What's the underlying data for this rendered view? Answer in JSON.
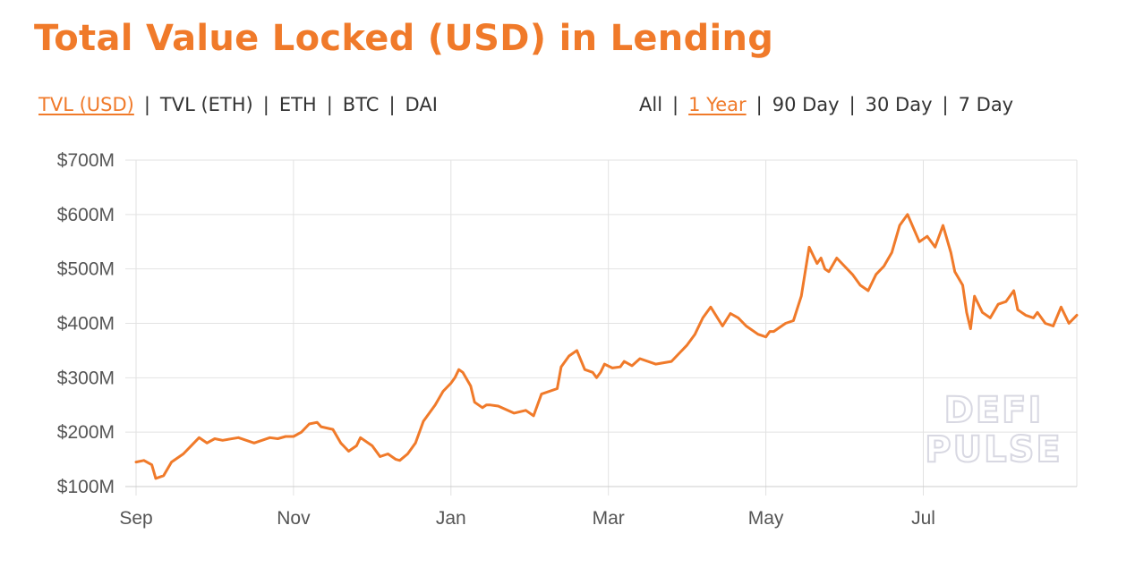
{
  "title": "Total Value Locked (USD) in Lending",
  "metric_tabs": [
    {
      "label": "TVL (USD)",
      "active": true
    },
    {
      "label": "TVL (ETH)",
      "active": false
    },
    {
      "label": "ETH",
      "active": false
    },
    {
      "label": "BTC",
      "active": false
    },
    {
      "label": "DAI",
      "active": false
    }
  ],
  "range_tabs": [
    {
      "label": "All",
      "active": false
    },
    {
      "label": "1 Year",
      "active": true
    },
    {
      "label": "90 Day",
      "active": false
    },
    {
      "label": "30 Day",
      "active": false
    },
    {
      "label": "7 Day",
      "active": false
    }
  ],
  "separator": "|",
  "watermark": [
    "DEFI",
    "PULSE"
  ],
  "colors": {
    "accent": "#f07a2a",
    "line": "#f07a2a",
    "grid": "#e2e2e2",
    "text": "#333333"
  },
  "chart_data": {
    "type": "line",
    "title": "Total Value Locked (USD) in Lending",
    "xlabel": "",
    "ylabel": "",
    "x_ticks": [
      "Sep",
      "Nov",
      "Jan",
      "Mar",
      "May",
      "Jul"
    ],
    "x_tick_positions": [
      0,
      2,
      4,
      6,
      8,
      10
    ],
    "xlim": [
      0,
      11.95
    ],
    "y_ticks": [
      "$100M",
      "$200M",
      "$300M",
      "$400M",
      "$500M",
      "$600M",
      "$700M"
    ],
    "y_tick_values": [
      100,
      200,
      300,
      400,
      500,
      600,
      700
    ],
    "ylim": [
      100,
      700
    ],
    "units": "USD millions",
    "grid": true,
    "legend": "none",
    "series": [
      {
        "x": [
          0,
          0.1,
          0.2,
          0.25,
          0.35,
          0.45,
          0.6,
          0.7,
          0.8,
          0.9,
          1.0,
          1.1,
          1.3,
          1.5,
          1.7,
          1.8,
          1.9,
          2.0,
          2.1,
          2.2,
          2.3,
          2.35,
          2.5,
          2.6,
          2.7,
          2.8,
          2.85,
          3.0,
          3.1,
          3.2,
          3.3,
          3.35,
          3.45,
          3.55,
          3.65,
          3.8,
          3.9,
          4.0,
          4.05,
          4.1,
          4.15,
          4.25,
          4.3,
          4.4,
          4.45,
          4.5,
          4.6,
          4.8,
          4.95,
          5.05,
          5.15,
          5.35,
          5.4,
          5.5,
          5.6,
          5.7,
          5.8,
          5.85,
          5.9,
          5.95,
          6.05,
          6.15,
          6.2,
          6.3,
          6.4,
          6.6,
          6.8,
          7.0,
          7.1,
          7.2,
          7.3,
          7.45,
          7.55,
          7.65,
          7.75,
          7.9,
          8.0,
          8.05,
          8.1,
          8.25,
          8.35,
          8.45,
          8.55,
          8.65,
          8.7,
          8.75,
          8.8,
          8.9,
          9.0,
          9.1,
          9.2,
          9.3,
          9.4,
          9.5,
          9.6,
          9.7,
          9.8,
          9.95,
          10.05,
          10.15,
          10.25,
          10.35,
          10.4,
          10.5,
          10.55,
          10.6,
          10.65,
          10.75,
          10.85,
          10.95,
          11.05,
          11.15,
          11.2,
          11.3,
          11.4,
          11.45,
          11.55,
          11.65,
          11.75,
          11.85,
          11.95
        ],
        "y": [
          145,
          148,
          140,
          115,
          120,
          145,
          160,
          175,
          190,
          180,
          188,
          185,
          190,
          180,
          190,
          188,
          192,
          192,
          200,
          215,
          218,
          210,
          205,
          180,
          165,
          175,
          190,
          175,
          155,
          160,
          150,
          148,
          160,
          180,
          220,
          250,
          275,
          290,
          300,
          315,
          310,
          285,
          255,
          245,
          250,
          250,
          248,
          235,
          240,
          230,
          270,
          280,
          320,
          340,
          350,
          315,
          310,
          300,
          310,
          325,
          318,
          320,
          330,
          322,
          335,
          325,
          330,
          360,
          380,
          410,
          430,
          395,
          418,
          410,
          395,
          380,
          375,
          385,
          385,
          400,
          405,
          450,
          540,
          510,
          520,
          500,
          495,
          520,
          505,
          490,
          470,
          460,
          490,
          505,
          530,
          580,
          600,
          550,
          560,
          540,
          580,
          530,
          495,
          470,
          420,
          390,
          450,
          420,
          410,
          435,
          440,
          460,
          425,
          415,
          410,
          420,
          400,
          395,
          430,
          400,
          415
        ]
      }
    ]
  }
}
